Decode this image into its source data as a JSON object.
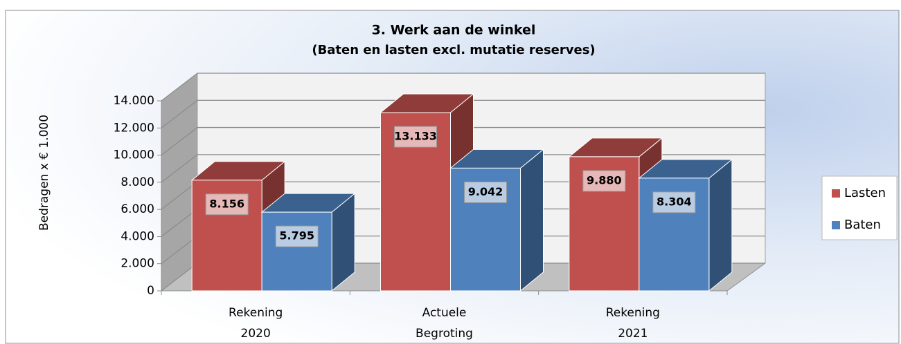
{
  "chart_data": {
    "type": "bar3d",
    "title": "3. Werk aan de winkel",
    "subtitle": "(Baten en lasten excl. mutatie reserves)",
    "y_label": "Bedragen x € 1.000",
    "categories": [
      "Rekening 2020",
      "Actuele Begroting",
      "Rekening 2021"
    ],
    "series": [
      {
        "name": "Lasten",
        "color": "#c0504d",
        "values": [
          8156,
          13133,
          9880
        ],
        "value_labels": [
          "8.156",
          "13.133",
          "9.880"
        ]
      },
      {
        "name": "Baten",
        "color": "#4f81bd",
        "values": [
          5795,
          9042,
          8304
        ],
        "value_labels": [
          "5.795",
          "9.042",
          "8.304"
        ]
      }
    ],
    "ylim": [
      0,
      14000
    ],
    "yticks": [
      0,
      {
        "value": 2000,
        "label": "2.000"
      },
      {
        "value": 4000,
        "label": "4.000"
      },
      {
        "value": 6000,
        "label": "6.000"
      },
      {
        "value": 8000,
        "label": "8.000"
      },
      {
        "value": 10000,
        "label": "10.000"
      },
      {
        "value": 12000,
        "label": "12.000"
      },
      {
        "value": 14000,
        "label": "14.000"
      }
    ],
    "grid": true,
    "legend": "right"
  }
}
